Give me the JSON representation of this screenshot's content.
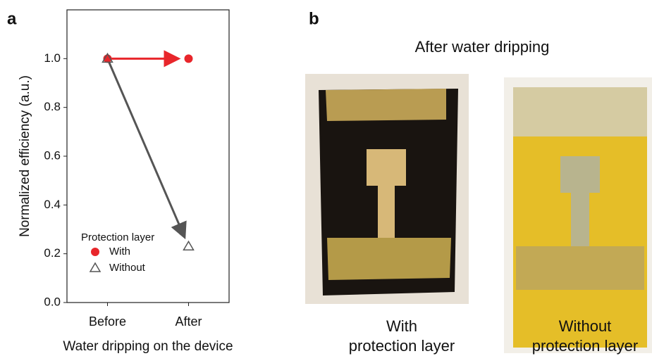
{
  "chart_data": {
    "type": "scatter",
    "panel_label": "a",
    "x_label": "Water dripping on the device",
    "y_label": "Normalized efficiency (a.u.)",
    "categories": [
      "Before",
      "After"
    ],
    "series": [
      {
        "name": "With",
        "color": "#e8262b",
        "marker": "circle",
        "values": [
          1.0,
          1.0
        ]
      },
      {
        "name": "Without",
        "color": "#555555",
        "marker": "triangle",
        "values": [
          1.0,
          0.23
        ]
      }
    ],
    "ylim": [
      0,
      1.2
    ],
    "yticks": [
      {
        "value": 0,
        "label": "0.0"
      },
      0.2,
      0.4,
      0.6,
      0.8,
      {
        "value": 1,
        "label": "1.0"
      }
    ],
    "legend": "lower left",
    "legend_title": "Protection layer",
    "arrows": true
  },
  "panel_b": {
    "label": "b",
    "title": "After water dripping",
    "photos": [
      {
        "caption": [
          "With",
          "protection layer"
        ]
      },
      {
        "caption": [
          "Without",
          "protection layer"
        ]
      }
    ]
  }
}
